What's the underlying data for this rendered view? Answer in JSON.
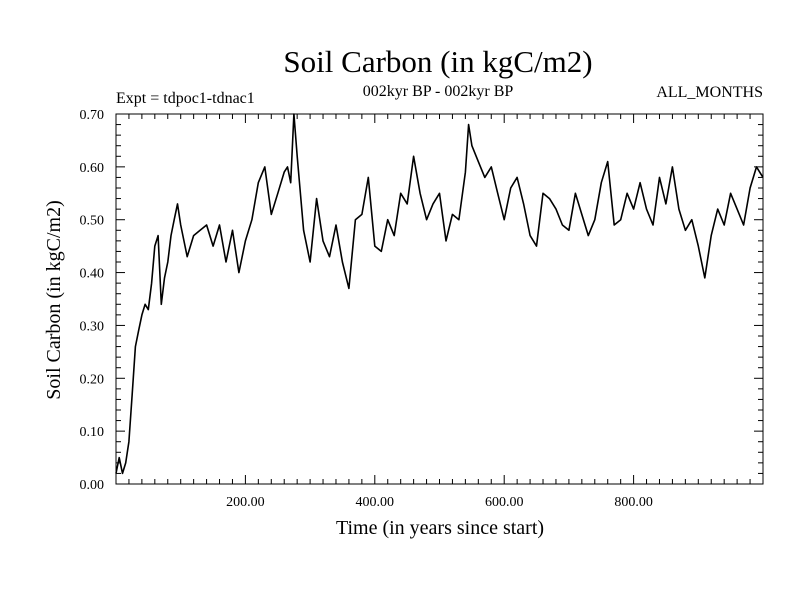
{
  "chart_data": {
    "type": "line",
    "title": "Soil Carbon (in kgC/m2)",
    "subtitle": "002kyr BP - 002kyr BP",
    "experiment": "Expt = tdpoc1-tdnac1",
    "period": "ALL_MONTHS",
    "xlabel": "Time (in years since start)",
    "ylabel": "Soil Carbon (in kgC/m2)",
    "xlim": [
      0,
      1000
    ],
    "ylim": [
      0,
      0.7
    ],
    "x_tick_labels": [
      "200.00",
      "400.00",
      "600.00",
      "800.00"
    ],
    "x_ticks": [
      200,
      400,
      600,
      800
    ],
    "y_tick_labels": [
      "0.00",
      "0.10",
      "0.20",
      "0.30",
      "0.40",
      "0.50",
      "0.60",
      "0.70"
    ],
    "y_ticks": [
      0,
      0.1,
      0.2,
      0.3,
      0.4,
      0.5,
      0.6,
      0.7
    ],
    "grid": false,
    "series": [
      {
        "name": "Soil Carbon",
        "x": [
          0,
          5,
          10,
          15,
          20,
          25,
          30,
          35,
          40,
          45,
          50,
          55,
          60,
          65,
          70,
          75,
          80,
          85,
          90,
          95,
          100,
          110,
          120,
          130,
          140,
          150,
          160,
          170,
          180,
          190,
          200,
          210,
          220,
          230,
          240,
          250,
          260,
          265,
          270,
          275,
          280,
          290,
          300,
          310,
          320,
          330,
          340,
          350,
          360,
          370,
          380,
          390,
          400,
          410,
          420,
          430,
          440,
          450,
          460,
          470,
          480,
          490,
          500,
          510,
          520,
          530,
          540,
          545,
          550,
          560,
          570,
          580,
          590,
          600,
          610,
          620,
          630,
          640,
          650,
          660,
          670,
          680,
          690,
          700,
          710,
          720,
          730,
          740,
          750,
          760,
          770,
          780,
          790,
          800,
          810,
          820,
          830,
          840,
          850,
          860,
          870,
          880,
          890,
          900,
          910,
          920,
          930,
          940,
          950,
          960,
          970,
          980,
          990,
          1000
        ],
        "values": [
          0.02,
          0.05,
          0.02,
          0.04,
          0.08,
          0.17,
          0.26,
          0.29,
          0.32,
          0.34,
          0.33,
          0.38,
          0.45,
          0.47,
          0.34,
          0.39,
          0.42,
          0.47,
          0.5,
          0.53,
          0.49,
          0.43,
          0.47,
          0.48,
          0.49,
          0.45,
          0.49,
          0.42,
          0.48,
          0.4,
          0.46,
          0.5,
          0.57,
          0.6,
          0.51,
          0.55,
          0.59,
          0.6,
          0.57,
          0.7,
          0.62,
          0.48,
          0.42,
          0.54,
          0.46,
          0.43,
          0.49,
          0.42,
          0.37,
          0.5,
          0.51,
          0.58,
          0.45,
          0.44,
          0.5,
          0.47,
          0.55,
          0.53,
          0.62,
          0.55,
          0.5,
          0.53,
          0.55,
          0.46,
          0.51,
          0.5,
          0.59,
          0.68,
          0.64,
          0.61,
          0.58,
          0.6,
          0.55,
          0.5,
          0.56,
          0.58,
          0.53,
          0.47,
          0.45,
          0.55,
          0.54,
          0.52,
          0.49,
          0.48,
          0.55,
          0.51,
          0.47,
          0.5,
          0.57,
          0.61,
          0.49,
          0.5,
          0.55,
          0.52,
          0.57,
          0.52,
          0.49,
          0.58,
          0.53,
          0.6,
          0.52,
          0.48,
          0.5,
          0.45,
          0.39,
          0.47,
          0.52,
          0.49,
          0.55,
          0.52,
          0.49,
          0.56,
          0.6,
          0.58
        ]
      }
    ]
  }
}
